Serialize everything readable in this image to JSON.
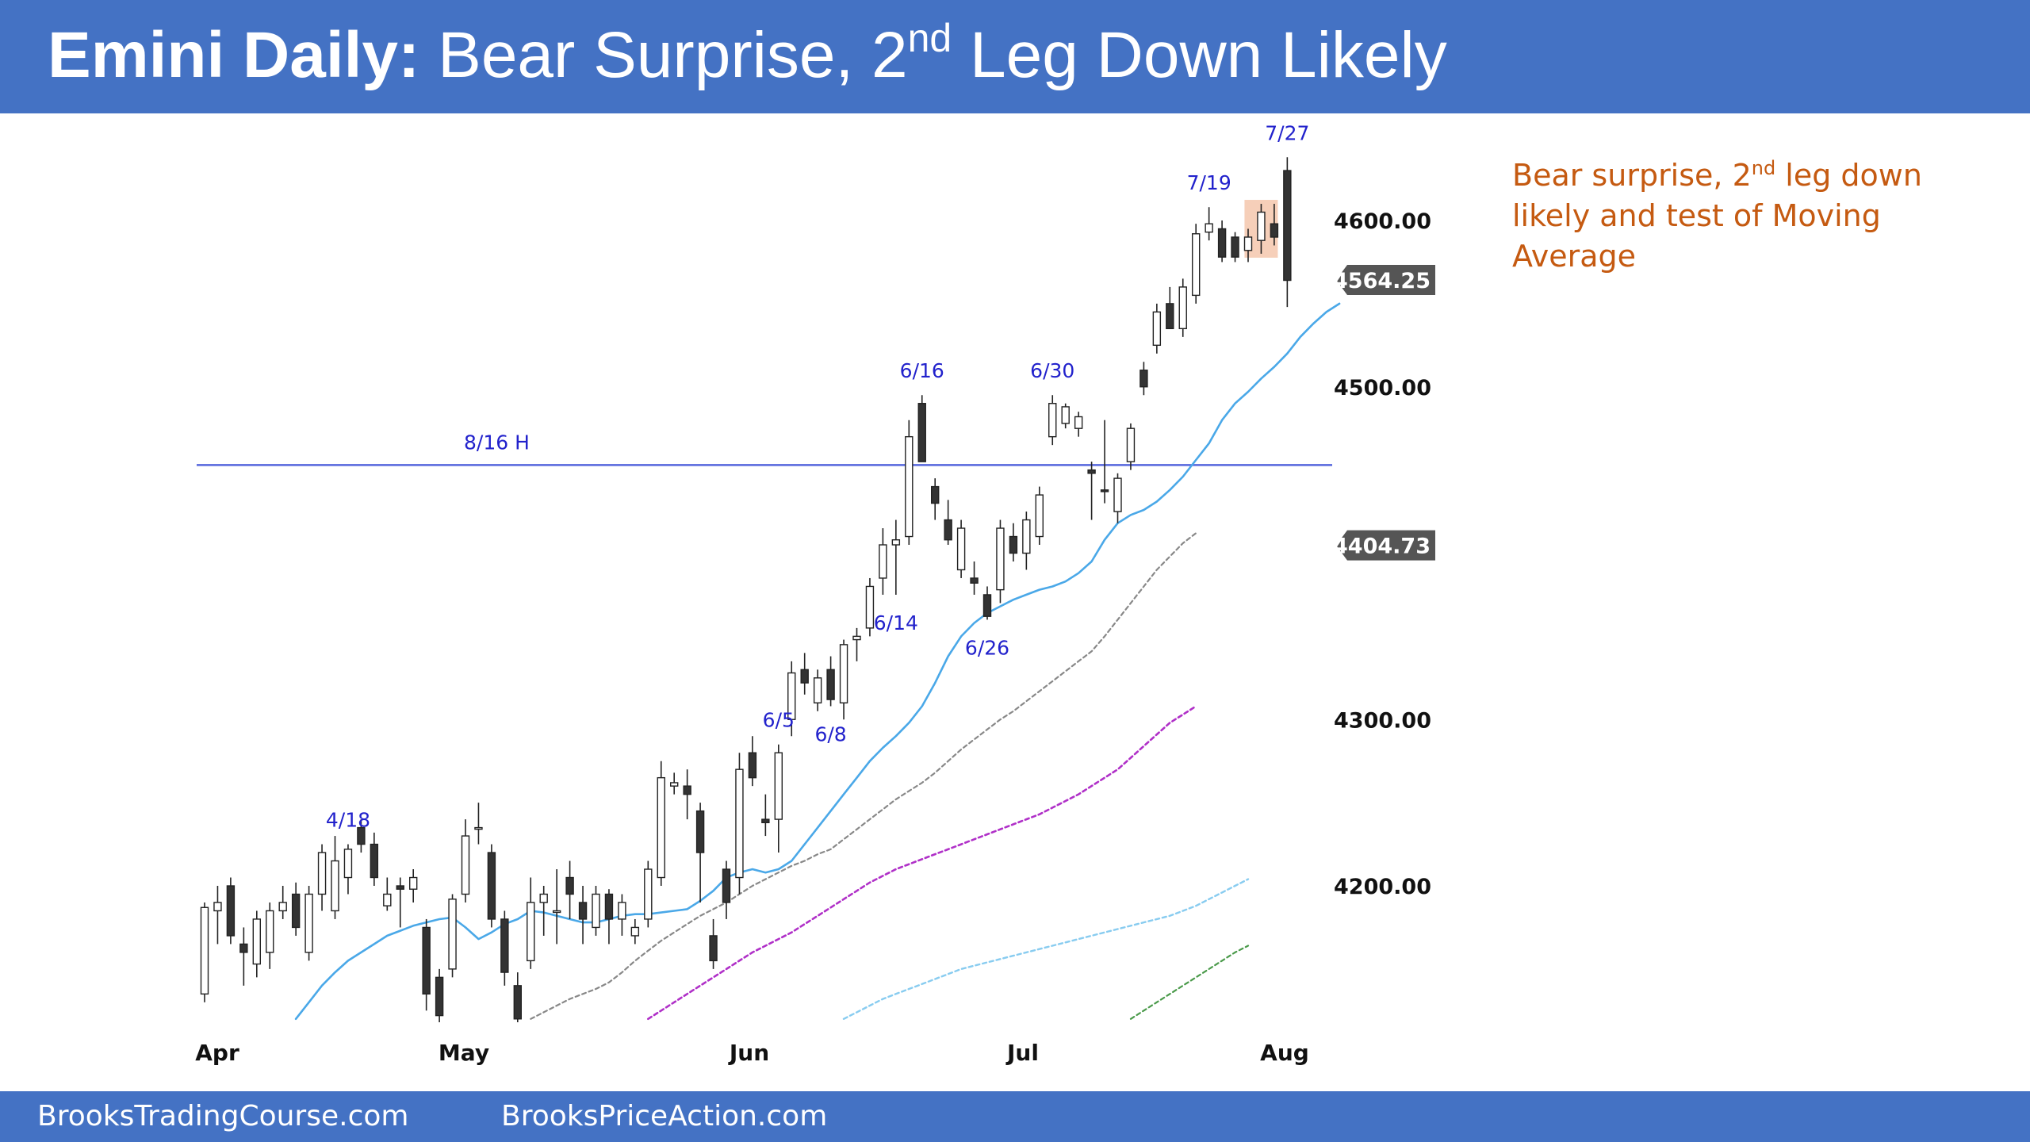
{
  "header": {
    "title_bold": "Emini Daily:",
    "title_main": " Bear Surprise, 2",
    "title_sup": "nd",
    "title_rest": " Leg Down Likely"
  },
  "note": {
    "part1": "Bear surprise, 2",
    "sup": "nd",
    "part2": " leg down likely and test of Moving Average"
  },
  "footer": {
    "link1": "BrooksTradingCourse.com",
    "link2": "BrooksPriceAction.com"
  },
  "colors": {
    "header_bg": "#4472c4",
    "note_text": "#c55a11",
    "bull_candle": "#ffffff",
    "bear_candle": "#333333",
    "ema20": "#4aa8e8",
    "ma50": "#888888",
    "ma100": "#b030c8",
    "ma150": "#88ccf0",
    "ma200": "#4a9a4a",
    "hline": "#5566dd",
    "date_label": "#2222cc",
    "highlight": "#f4c7ad"
  },
  "chart_data": {
    "type": "candlestick",
    "title": "Emini Daily: Bear Surprise, 2nd Leg Down Likely",
    "x_ticks": [
      "Apr",
      "May",
      "Jun",
      "Jul",
      "Aug"
    ],
    "y_ticks": [
      4200,
      4300,
      4500,
      4600
    ],
    "y_tick_labels": [
      "4200.00",
      "4300.00",
      "4500.00",
      "4600.00"
    ],
    "ylim": [
      4115,
      4645
    ],
    "grid": false,
    "price_tags": [
      {
        "label": "4564.25",
        "value": 4564.25
      },
      {
        "label": "4404.73",
        "value": 4404.73
      }
    ],
    "horizontal_line": {
      "label": "8/16 H",
      "value": 4453
    },
    "highlight_date": "7/27",
    "candles": [
      {
        "date": "3/31",
        "o": 4135,
        "h": 4190,
        "l": 4130,
        "c": 4187
      },
      {
        "date": "4/3",
        "o": 4185,
        "h": 4200,
        "l": 4165,
        "c": 4190
      },
      {
        "date": "4/4",
        "o": 4200,
        "h": 4205,
        "l": 4165,
        "c": 4170
      },
      {
        "date": "4/5",
        "o": 4165,
        "h": 4175,
        "l": 4140,
        "c": 4160
      },
      {
        "date": "4/6",
        "o": 4153,
        "h": 4185,
        "l": 4145,
        "c": 4180
      },
      {
        "date": "4/10",
        "o": 4160,
        "h": 4190,
        "l": 4150,
        "c": 4185
      },
      {
        "date": "4/11",
        "o": 4185,
        "h": 4200,
        "l": 4180,
        "c": 4190
      },
      {
        "date": "4/12",
        "o": 4195,
        "h": 4202,
        "l": 4170,
        "c": 4175
      },
      {
        "date": "4/13",
        "o": 4160,
        "h": 4200,
        "l": 4155,
        "c": 4195
      },
      {
        "date": "4/14",
        "o": 4195,
        "h": 4225,
        "l": 4185,
        "c": 4220
      },
      {
        "date": "4/17",
        "o": 4185,
        "h": 4230,
        "l": 4180,
        "c": 4215
      },
      {
        "date": "4/18",
        "o": 4205,
        "h": 4225,
        "l": 4195,
        "c": 4222
      },
      {
        "date": "4/19",
        "o": 4235,
        "h": 4240,
        "l": 4220,
        "c": 4225
      },
      {
        "date": "4/20",
        "o": 4225,
        "h": 4232,
        "l": 4200,
        "c": 4205
      },
      {
        "date": "4/21",
        "o": 4188,
        "h": 4205,
        "l": 4185,
        "c": 4195
      },
      {
        "date": "4/24",
        "o": 4200,
        "h": 4205,
        "l": 4175,
        "c": 4198
      },
      {
        "date": "4/25",
        "o": 4198,
        "h": 4210,
        "l": 4190,
        "c": 4205
      },
      {
        "date": "4/26",
        "o": 4175,
        "h": 4180,
        "l": 4125,
        "c": 4135
      },
      {
        "date": "4/27",
        "o": 4145,
        "h": 4150,
        "l": 4118,
        "c": 4122
      },
      {
        "date": "4/28",
        "o": 4150,
        "h": 4195,
        "l": 4145,
        "c": 4192
      },
      {
        "date": "5/1",
        "o": 4195,
        "h": 4240,
        "l": 4190,
        "c": 4230
      },
      {
        "date": "5/2",
        "o": 4235,
        "h": 4250,
        "l": 4225,
        "c": 4235
      },
      {
        "date": "5/3",
        "o": 4220,
        "h": 4225,
        "l": 4175,
        "c": 4180
      },
      {
        "date": "5/4",
        "o": 4180,
        "h": 4185,
        "l": 4140,
        "c": 4148
      },
      {
        "date": "5/5",
        "o": 4140,
        "h": 4148,
        "l": 4118,
        "c": 4120
      },
      {
        "date": "5/8",
        "o": 4155,
        "h": 4205,
        "l": 4150,
        "c": 4190
      },
      {
        "date": "5/9",
        "o": 4190,
        "h": 4200,
        "l": 4170,
        "c": 4195
      },
      {
        "date": "5/10",
        "o": 4185,
        "h": 4210,
        "l": 4165,
        "c": 4185
      },
      {
        "date": "5/11",
        "o": 4205,
        "h": 4215,
        "l": 4180,
        "c": 4195
      },
      {
        "date": "5/12",
        "o": 4190,
        "h": 4200,
        "l": 4165,
        "c": 4180
      },
      {
        "date": "5/15",
        "o": 4175,
        "h": 4200,
        "l": 4170,
        "c": 4195
      },
      {
        "date": "5/16",
        "o": 4195,
        "h": 4198,
        "l": 4165,
        "c": 4180
      },
      {
        "date": "5/17",
        "o": 4180,
        "h": 4195,
        "l": 4170,
        "c": 4190
      },
      {
        "date": "5/18",
        "o": 4170,
        "h": 4180,
        "l": 4165,
        "c": 4175
      },
      {
        "date": "5/19",
        "o": 4180,
        "h": 4215,
        "l": 4175,
        "c": 4210
      },
      {
        "date": "5/22",
        "o": 4205,
        "h": 4275,
        "l": 4200,
        "c": 4265
      },
      {
        "date": "5/23",
        "o": 4260,
        "h": 4268,
        "l": 4255,
        "c": 4262
      },
      {
        "date": "5/24",
        "o": 4260,
        "h": 4270,
        "l": 4240,
        "c": 4255
      },
      {
        "date": "5/25",
        "o": 4245,
        "h": 4250,
        "l": 4190,
        "c": 4220
      },
      {
        "date": "5/26",
        "o": 4170,
        "h": 4180,
        "l": 4150,
        "c": 4155
      },
      {
        "date": "5/30",
        "o": 4210,
        "h": 4215,
        "l": 4180,
        "c": 4190
      },
      {
        "date": "5/31",
        "o": 4205,
        "h": 4280,
        "l": 4195,
        "c": 4270
      },
      {
        "date": "6/1",
        "o": 4280,
        "h": 4290,
        "l": 4260,
        "c": 4265
      },
      {
        "date": "6/2",
        "o": 4240,
        "h": 4255,
        "l": 4230,
        "c": 4238
      },
      {
        "date": "6/5",
        "o": 4240,
        "h": 4285,
        "l": 4220,
        "c": 4280
      },
      {
        "date": "6/6",
        "o": 4300,
        "h": 4335,
        "l": 4290,
        "c": 4328
      },
      {
        "date": "6/7",
        "o": 4330,
        "h": 4340,
        "l": 4315,
        "c": 4322
      },
      {
        "date": "6/8",
        "o": 4310,
        "h": 4330,
        "l": 4305,
        "c": 4325
      },
      {
        "date": "6/9",
        "o": 4330,
        "h": 4338,
        "l": 4308,
        "c": 4312
      },
      {
        "date": "6/12",
        "o": 4310,
        "h": 4348,
        "l": 4300,
        "c": 4345
      },
      {
        "date": "6/13",
        "o": 4348,
        "h": 4355,
        "l": 4335,
        "c": 4350
      },
      {
        "date": "6/14",
        "o": 4355,
        "h": 4385,
        "l": 4350,
        "c": 4380
      },
      {
        "date": "6/15",
        "o": 4385,
        "h": 4415,
        "l": 4375,
        "c": 4405
      },
      {
        "date": "6/16",
        "o": 4405,
        "h": 4420,
        "l": 4375,
        "c": 4408
      },
      {
        "date": "6/19",
        "o": 4410,
        "h": 4480,
        "l": 4405,
        "c": 4470
      },
      {
        "date": "6/20",
        "o": 4490,
        "h": 4495,
        "l": 4455,
        "c": 4455
      },
      {
        "date": "6/21",
        "o": 4440,
        "h": 4445,
        "l": 4420,
        "c": 4430
      },
      {
        "date": "6/22",
        "o": 4420,
        "h": 4432,
        "l": 4405,
        "c": 4408
      },
      {
        "date": "6/23",
        "o": 4390,
        "h": 4420,
        "l": 4385,
        "c": 4415
      },
      {
        "date": "6/26",
        "o": 4385,
        "h": 4395,
        "l": 4375,
        "c": 4382
      },
      {
        "date": "6/27",
        "o": 4375,
        "h": 4380,
        "l": 4360,
        "c": 4362
      },
      {
        "date": "6/28",
        "o": 4378,
        "h": 4420,
        "l": 4370,
        "c": 4415
      },
      {
        "date": "6/29",
        "o": 4410,
        "h": 4418,
        "l": 4395,
        "c": 4400
      },
      {
        "date": "6/30",
        "o": 4400,
        "h": 4425,
        "l": 4390,
        "c": 4420
      },
      {
        "date": "7/3",
        "o": 4410,
        "h": 4440,
        "l": 4405,
        "c": 4435
      },
      {
        "date": "7/5",
        "o": 4470,
        "h": 4495,
        "l": 4465,
        "c": 4490
      },
      {
        "date": "7/6",
        "o": 4478,
        "h": 4490,
        "l": 4475,
        "c": 4488
      },
      {
        "date": "7/7",
        "o": 4475,
        "h": 4485,
        "l": 4470,
        "c": 4482
      },
      {
        "date": "7/10",
        "o": 4450,
        "h": 4455,
        "l": 4420,
        "c": 4448
      },
      {
        "date": "7/11",
        "o": 4438,
        "h": 4480,
        "l": 4430,
        "c": 4437
      },
      {
        "date": "7/12",
        "o": 4425,
        "h": 4448,
        "l": 4418,
        "c": 4445
      },
      {
        "date": "7/13",
        "o": 4455,
        "h": 4478,
        "l": 4450,
        "c": 4475
      },
      {
        "date": "7/14",
        "o": 4510,
        "h": 4515,
        "l": 4495,
        "c": 4500
      },
      {
        "date": "7/17",
        "o": 4525,
        "h": 4550,
        "l": 4520,
        "c": 4545
      },
      {
        "date": "7/18",
        "o": 4550,
        "h": 4560,
        "l": 4535,
        "c": 4535
      },
      {
        "date": "7/19",
        "o": 4535,
        "h": 4565,
        "l": 4530,
        "c": 4560
      },
      {
        "date": "7/20",
        "o": 4555,
        "h": 4598,
        "l": 4550,
        "c": 4592
      },
      {
        "date": "7/21",
        "o": 4593,
        "h": 4608,
        "l": 4588,
        "c": 4598
      },
      {
        "date": "7/24",
        "o": 4595,
        "h": 4600,
        "l": 4575,
        "c": 4578
      },
      {
        "date": "7/25",
        "o": 4590,
        "h": 4593,
        "l": 4575,
        "c": 4578
      },
      {
        "date": "7/26",
        "o": 4582,
        "h": 4595,
        "l": 4575,
        "c": 4590
      },
      {
        "date": "7/27",
        "o": 4588,
        "h": 4610,
        "l": 4580,
        "c": 4605
      },
      {
        "date": "7/28",
        "o": 4598,
        "h": 4610,
        "l": 4585,
        "c": 4590
      },
      {
        "date": "7/29",
        "o": 4630,
        "h": 4638,
        "l": 4548,
        "c": 4564
      }
    ],
    "candle_labels": [
      {
        "text": "4/18",
        "date": "4/18",
        "pos": "above"
      },
      {
        "text": "6/5",
        "date": "6/5",
        "pos": "above"
      },
      {
        "text": "6/8",
        "date": "6/9",
        "pos": "below"
      },
      {
        "text": "6/14",
        "date": "6/16",
        "pos": "below"
      },
      {
        "text": "6/16",
        "date": "6/20",
        "pos": "above"
      },
      {
        "text": "6/26",
        "date": "6/27",
        "pos": "below"
      },
      {
        "text": "6/30",
        "date": "7/5",
        "pos": "above"
      },
      {
        "text": "7/19",
        "date": "7/21",
        "pos": "above"
      },
      {
        "text": "7/27",
        "date": "7/29",
        "pos": "above"
      }
    ],
    "series": [
      {
        "name": "",
        "style": "ema",
        "start": 7,
        "values": [
          4120,
          4130,
          4140,
          4148,
          4155,
          4160,
          4165,
          4170,
          4173,
          4176,
          4178,
          4180,
          4181,
          4175,
          4168,
          4172,
          4177,
          4180,
          4185,
          4184,
          4182,
          4180,
          4178,
          4178,
          4180,
          4182,
          4183,
          4183,
          4184,
          4185,
          4186,
          4191,
          4197,
          4205,
          4208,
          4210,
          4208,
          4210,
          4215,
          4225,
          4235,
          4245,
          4255,
          4265,
          4275,
          4283,
          4290,
          4298,
          4308,
          4322,
          4338,
          4350,
          4358,
          4364,
          4368,
          4372,
          4375,
          4378,
          4380,
          4383,
          4388,
          4395,
          4408,
          4418,
          4423,
          4426,
          4431,
          4438,
          4446,
          4456,
          4466,
          4480,
          4490,
          4497,
          4505,
          4512,
          4520,
          4530,
          4538,
          4545,
          4550
        ]
      },
      {
        "name": "",
        "style": "ma50",
        "start": 25,
        "values": [
          4120,
          4124,
          4128,
          4132,
          4135,
          4138,
          4142,
          4148,
          4155,
          4161,
          4167,
          4172,
          4177,
          4182,
          4186,
          4190,
          4195,
          4200,
          4204,
          4208,
          4212,
          4215,
          4219,
          4222,
          4228,
          4234,
          4240,
          4246,
          4252,
          4257,
          4262,
          4268,
          4275,
          4282,
          4288,
          4294,
          4300,
          4305,
          4311,
          4317,
          4323,
          4329,
          4335,
          4341,
          4350,
          4360,
          4370,
          4380,
          4390,
          4398,
          4406,
          4412
        ]
      },
      {
        "name": "",
        "style": "ma100",
        "start": 34,
        "values": [
          4120,
          4125,
          4130,
          4135,
          4140,
          4145,
          4150,
          4155,
          4160,
          4164,
          4168,
          4172,
          4177,
          4182,
          4187,
          4192,
          4197,
          4202,
          4206,
          4210,
          4213,
          4216,
          4219,
          4222,
          4225,
          4228,
          4231,
          4234,
          4237,
          4240,
          4243,
          4247,
          4251,
          4255,
          4260,
          4265,
          4270,
          4277,
          4284,
          4291,
          4298,
          4303,
          4308
        ]
      },
      {
        "name": "",
        "style": "ma150",
        "start": 49,
        "values": [
          4120,
          4124,
          4128,
          4132,
          4135,
          4138,
          4141,
          4144,
          4147,
          4150,
          4152,
          4154,
          4156,
          4158,
          4160,
          4162,
          4164,
          4166,
          4168,
          4170,
          4172,
          4174,
          4176,
          4178,
          4180,
          4182,
          4185,
          4188,
          4192,
          4196,
          4200,
          4204
        ]
      },
      {
        "name": "",
        "style": "ma200",
        "start": 71,
        "values": [
          4120,
          4125,
          4130,
          4135,
          4140,
          4145,
          4150,
          4155,
          4160,
          4164
        ]
      }
    ]
  }
}
